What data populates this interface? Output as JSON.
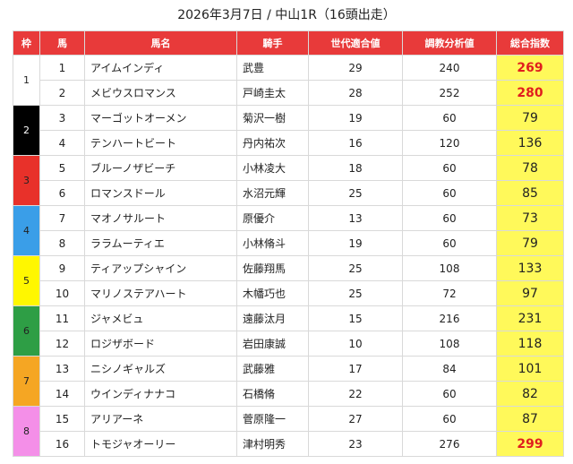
{
  "title": "2026年3月7日 / 中山1R（16頭出走）",
  "headers": {
    "waku": "枠",
    "num": "馬",
    "horse": "馬名",
    "jockey": "騎手",
    "gen": "世代適合値",
    "chokyo": "調教分析値",
    "total": "総合指数"
  },
  "waku_groups": [
    {
      "label": "1",
      "bg": "#ffffff",
      "fg": "#222222"
    },
    {
      "label": "2",
      "bg": "#000000",
      "fg": "#ffffff"
    },
    {
      "label": "3",
      "bg": "#e8312a",
      "fg": "#222222"
    },
    {
      "label": "4",
      "bg": "#3a9ee8",
      "fg": "#222222"
    },
    {
      "label": "5",
      "bg": "#fff700",
      "fg": "#222222"
    },
    {
      "label": "6",
      "bg": "#2e9e45",
      "fg": "#222222"
    },
    {
      "label": "7",
      "bg": "#f5a623",
      "fg": "#222222"
    },
    {
      "label": "8",
      "bg": "#f48fe8",
      "fg": "#222222"
    }
  ],
  "rows": [
    {
      "num": "1",
      "horse": "アイムインディ",
      "jockey": "武豊",
      "gen": "29",
      "chokyo": "240",
      "total": "269",
      "hi": true
    },
    {
      "num": "2",
      "horse": "メビウスロマンス",
      "jockey": "戸崎圭太",
      "gen": "28",
      "chokyo": "252",
      "total": "280",
      "hi": true
    },
    {
      "num": "3",
      "horse": "マーゴットオーメン",
      "jockey": "菊沢一樹",
      "gen": "19",
      "chokyo": "60",
      "total": "79",
      "hi": false
    },
    {
      "num": "4",
      "horse": "テンハートビート",
      "jockey": "丹内祐次",
      "gen": "16",
      "chokyo": "120",
      "total": "136",
      "hi": false
    },
    {
      "num": "5",
      "horse": "ブルーノザビーチ",
      "jockey": "小林凌大",
      "gen": "18",
      "chokyo": "60",
      "total": "78",
      "hi": false
    },
    {
      "num": "6",
      "horse": "ロマンスドール",
      "jockey": "水沼元輝",
      "gen": "25",
      "chokyo": "60",
      "total": "85",
      "hi": false
    },
    {
      "num": "7",
      "horse": "マオノサルート",
      "jockey": "原優介",
      "gen": "13",
      "chokyo": "60",
      "total": "73",
      "hi": false
    },
    {
      "num": "8",
      "horse": "ララムーティエ",
      "jockey": "小林脩斗",
      "gen": "19",
      "chokyo": "60",
      "total": "79",
      "hi": false
    },
    {
      "num": "9",
      "horse": "ティアップシャイン",
      "jockey": "佐藤翔馬",
      "gen": "25",
      "chokyo": "108",
      "total": "133",
      "hi": false
    },
    {
      "num": "10",
      "horse": "マリノステアハート",
      "jockey": "木幡巧也",
      "gen": "25",
      "chokyo": "72",
      "total": "97",
      "hi": false
    },
    {
      "num": "11",
      "horse": "ジャメビュ",
      "jockey": "遠藤汰月",
      "gen": "15",
      "chokyo": "216",
      "total": "231",
      "hi": false
    },
    {
      "num": "12",
      "horse": "ロジザボード",
      "jockey": "岩田康誠",
      "gen": "10",
      "chokyo": "108",
      "total": "118",
      "hi": false
    },
    {
      "num": "13",
      "horse": "ニシノギャルズ",
      "jockey": "武藤雅",
      "gen": "17",
      "chokyo": "84",
      "total": "101",
      "hi": false
    },
    {
      "num": "14",
      "horse": "ウインディナナコ",
      "jockey": "石橋脩",
      "gen": "22",
      "chokyo": "60",
      "total": "82",
      "hi": false
    },
    {
      "num": "15",
      "horse": "アリアーネ",
      "jockey": "菅原隆一",
      "gen": "27",
      "chokyo": "60",
      "total": "87",
      "hi": false
    },
    {
      "num": "16",
      "horse": "トモジャオーリー",
      "jockey": "津村明秀",
      "gen": "23",
      "chokyo": "276",
      "total": "299",
      "hi": true
    }
  ]
}
